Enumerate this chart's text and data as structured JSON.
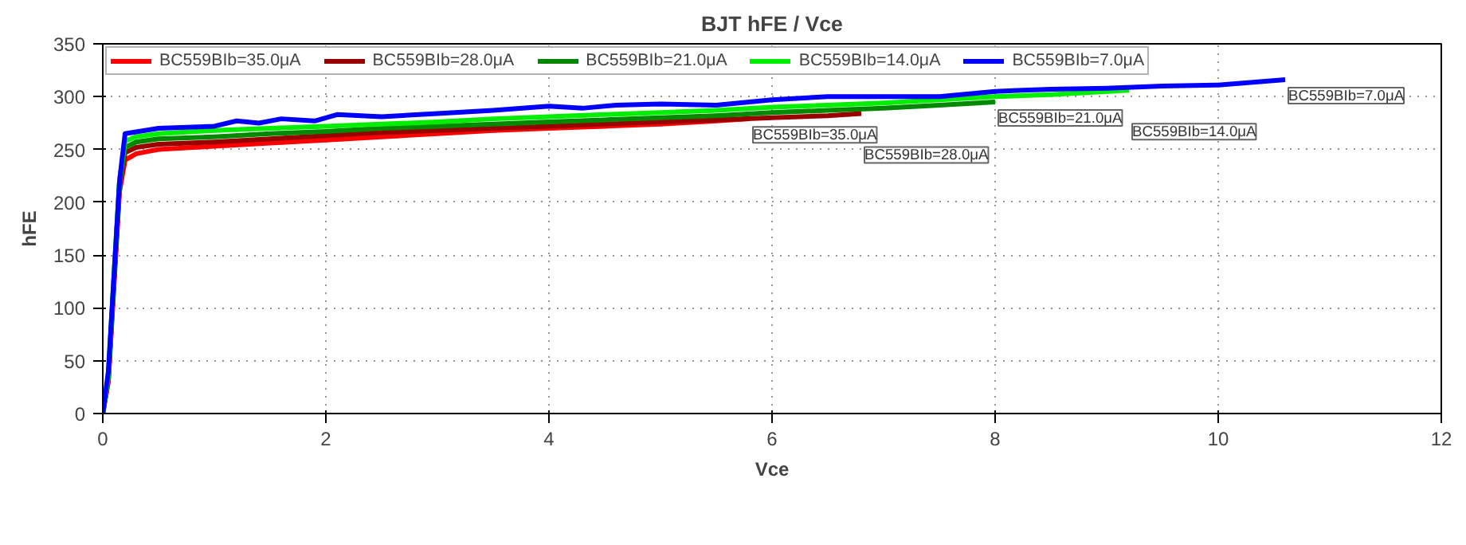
{
  "chart_data": {
    "type": "line",
    "title": "BJT hFE / Vce",
    "xlabel": "Vce",
    "ylabel": "hFE",
    "xlim": [
      0,
      12
    ],
    "ylim": [
      0,
      350
    ],
    "xticks": [
      0,
      2,
      4,
      6,
      8,
      10,
      12
    ],
    "yticks": [
      0,
      50,
      100,
      150,
      200,
      250,
      300,
      350
    ],
    "grid": true,
    "legend": "top",
    "marker": "none",
    "line_style": "solid",
    "series": [
      {
        "name": "BC559BIb=35.0μA",
        "color": "#ff0000",
        "x": [
          0,
          0.05,
          0.1,
          0.15,
          0.2,
          0.3,
          0.5,
          1,
          1.5,
          2,
          2.5,
          3,
          3.5,
          4,
          4.5,
          5,
          5.5,
          5.8
        ],
        "values": [
          0,
          30,
          120,
          210,
          240,
          246,
          250,
          253,
          256,
          259,
          262,
          265,
          268,
          270,
          272,
          274,
          277,
          279
        ]
      },
      {
        "name": "BC559BIb=28.0μA",
        "color": "#990000",
        "x": [
          0,
          0.05,
          0.1,
          0.15,
          0.2,
          0.3,
          0.5,
          1,
          1.5,
          2,
          2.5,
          3,
          3.5,
          4,
          4.5,
          5,
          5.5,
          6,
          6.5,
          6.8
        ],
        "values": [
          0,
          32,
          125,
          215,
          247,
          252,
          255,
          257,
          260,
          263,
          266,
          268,
          270,
          272,
          274,
          276,
          278,
          280,
          282,
          284
        ]
      },
      {
        "name": "BC559BIb=21.0μA",
        "color": "#008800",
        "x": [
          0,
          0.05,
          0.1,
          0.15,
          0.2,
          0.3,
          0.5,
          1,
          1.5,
          2,
          2.5,
          3,
          3.5,
          4,
          4.5,
          5,
          5.5,
          6,
          6.5,
          7,
          7.5,
          8.0
        ],
        "values": [
          0,
          34,
          128,
          218,
          252,
          257,
          260,
          262,
          265,
          267,
          270,
          272,
          274,
          276,
          278,
          280,
          282,
          285,
          287,
          289,
          292,
          295
        ]
      },
      {
        "name": "BC559BIb=14.0μA",
        "color": "#00ee00",
        "x": [
          0,
          0.05,
          0.1,
          0.15,
          0.2,
          0.3,
          0.5,
          1,
          1.5,
          2,
          2.5,
          3,
          3.5,
          4,
          4.5,
          5,
          5.5,
          6,
          6.5,
          7,
          7.5,
          8,
          8.5,
          9.2
        ],
        "values": [
          0,
          36,
          130,
          220,
          258,
          262,
          265,
          268,
          270,
          272,
          274,
          276,
          279,
          281,
          283,
          285,
          287,
          290,
          292,
          294,
          297,
          300,
          302,
          306
        ]
      },
      {
        "name": "BC559BIb=7.0μA",
        "color": "#0000ff",
        "x": [
          0,
          0.05,
          0.1,
          0.15,
          0.2,
          0.5,
          1,
          1.2,
          1.4,
          1.6,
          1.9,
          2.1,
          2.5,
          3,
          3.5,
          4,
          4.3,
          4.6,
          5,
          5.5,
          6,
          6.5,
          7,
          7.5,
          8,
          8.5,
          9,
          9.5,
          10,
          10.6
        ],
        "values": [
          0,
          40,
          130,
          220,
          265,
          270,
          272,
          277,
          275,
          279,
          277,
          283,
          281,
          284,
          287,
          291,
          289,
          292,
          293,
          292,
          297,
          300,
          300,
          300,
          305,
          307,
          308,
          310,
          311,
          316
        ]
      }
    ],
    "annotations": [
      {
        "text": "BC559BIb=35.0μA",
        "x": 5.8,
        "y": 279
      },
      {
        "text": "BC559BIb=28.0μA",
        "x": 6.8,
        "y": 284
      },
      {
        "text": "BC559BIb=21.0μA",
        "x": 8.0,
        "y": 295
      },
      {
        "text": "BC559BIb=14.0μA",
        "x": 9.2,
        "y": 306
      },
      {
        "text": "BC559BIb=7.0μA",
        "x": 10.6,
        "y": 316
      }
    ]
  }
}
